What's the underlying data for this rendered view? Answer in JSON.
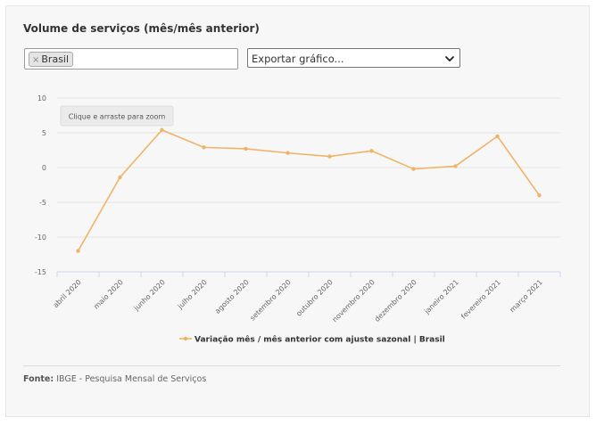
{
  "panel": {
    "title": "Volume de serviços (mês/mês anterior)",
    "selected_tag": "Brasil",
    "tag_remove": "×",
    "export_label": "Exportar gráfico...",
    "zoom_hint": "Clique e arraste para zoom",
    "source_label": "Fonte:",
    "source_text": "IBGE - Pesquisa Mensal de Serviços"
  },
  "colors": {
    "series": "#f0b467",
    "grid": "#e6e6e6",
    "axis": "#ccd6eb"
  },
  "chart_data": {
    "type": "line",
    "title": "",
    "xlabel": "",
    "ylabel": "",
    "categories": [
      "abril 2020",
      "maio 2020",
      "junho 2020",
      "julho 2020",
      "agosto 2020",
      "setembro 2020",
      "outubro 2020",
      "novembro 2020",
      "dezembro 2020",
      "janeiro 2021",
      "fevereiro 2021",
      "março 2021"
    ],
    "series": [
      {
        "name": "Variação mês / mês anterior com ajuste sazonal | Brasil",
        "values": [
          -12.0,
          -1.4,
          5.4,
          2.9,
          2.7,
          2.1,
          1.6,
          2.4,
          -0.2,
          0.2,
          4.5,
          -4.0
        ]
      }
    ],
    "ylim": [
      -15,
      10
    ],
    "yticks": [
      -15,
      -10,
      -5,
      0,
      5,
      10
    ],
    "grid": true,
    "legend": "bottom-center"
  }
}
